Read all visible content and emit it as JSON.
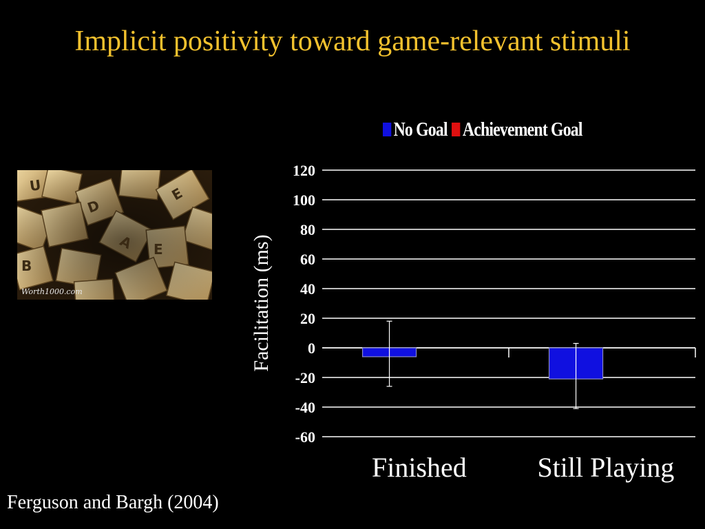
{
  "slide": {
    "title": "Implicit positivity toward game-relevant stimuli",
    "citation": "Ferguson and Bargh (2004)",
    "photo": {
      "icon": "scrabble-tiles-photo",
      "watermark": "Worth1000.com"
    }
  },
  "colors": {
    "title": "#f2c12e",
    "no_goal": "#1010e0",
    "achievement_goal": "#e01010",
    "grid": "#ffffff"
  },
  "chart_data": {
    "type": "bar",
    "title": "",
    "xlabel": "",
    "ylabel": "Facilitation (ms)",
    "ylim": [
      -60,
      120
    ],
    "yticks": [
      120,
      100,
      80,
      60,
      40,
      20,
      0,
      -20,
      -40,
      -60
    ],
    "categories": [
      "Finished",
      "Still Playing"
    ],
    "series": [
      {
        "name": "No Goal",
        "color": "#1010e0",
        "values": [
          -6,
          -21
        ],
        "error_low": [
          -26,
          -41
        ],
        "error_high": [
          18,
          3
        ]
      },
      {
        "name": "Achievement Goal",
        "color": "#e01010",
        "values": [
          0,
          0
        ]
      }
    ],
    "grid": true,
    "legend": "top"
  }
}
